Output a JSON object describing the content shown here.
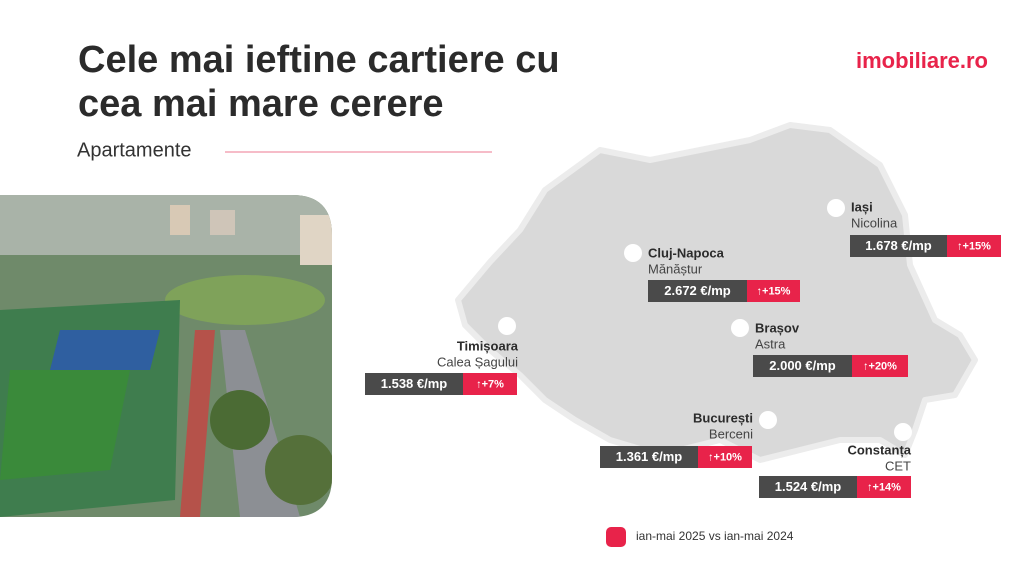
{
  "header": {
    "title_lines": [
      "Cele mai ieftine cartiere cu",
      "cea mai mare cerere"
    ],
    "subtitle": "Apartamente",
    "logo": "imobiliare.ro"
  },
  "locations": [
    {
      "city": "Iași",
      "neighborhood": "Nicolina",
      "price": "1.678 €/mp",
      "change": "↑+15%"
    },
    {
      "city": "Cluj-Napoca",
      "neighborhood": "Mănăștur",
      "price": "2.672 €/mp",
      "change": "↑+15%"
    },
    {
      "city": "Brașov",
      "neighborhood": "Astra",
      "price": "2.000 €/mp",
      "change": "↑+20%"
    },
    {
      "city": "Timișoara",
      "neighborhood": "Calea Șagului",
      "price": "1.538 €/mp",
      "change": "↑+7%"
    },
    {
      "city": "București",
      "neighborhood": "Berceni",
      "price": "1.361 €/mp",
      "change": "↑+10%"
    },
    {
      "city": "Constanța",
      "neighborhood": "CET",
      "price": "1.524 €/mp",
      "change": "↑+14%"
    }
  ],
  "legend": "ian-mai 2025 vs ian-mai 2024"
}
